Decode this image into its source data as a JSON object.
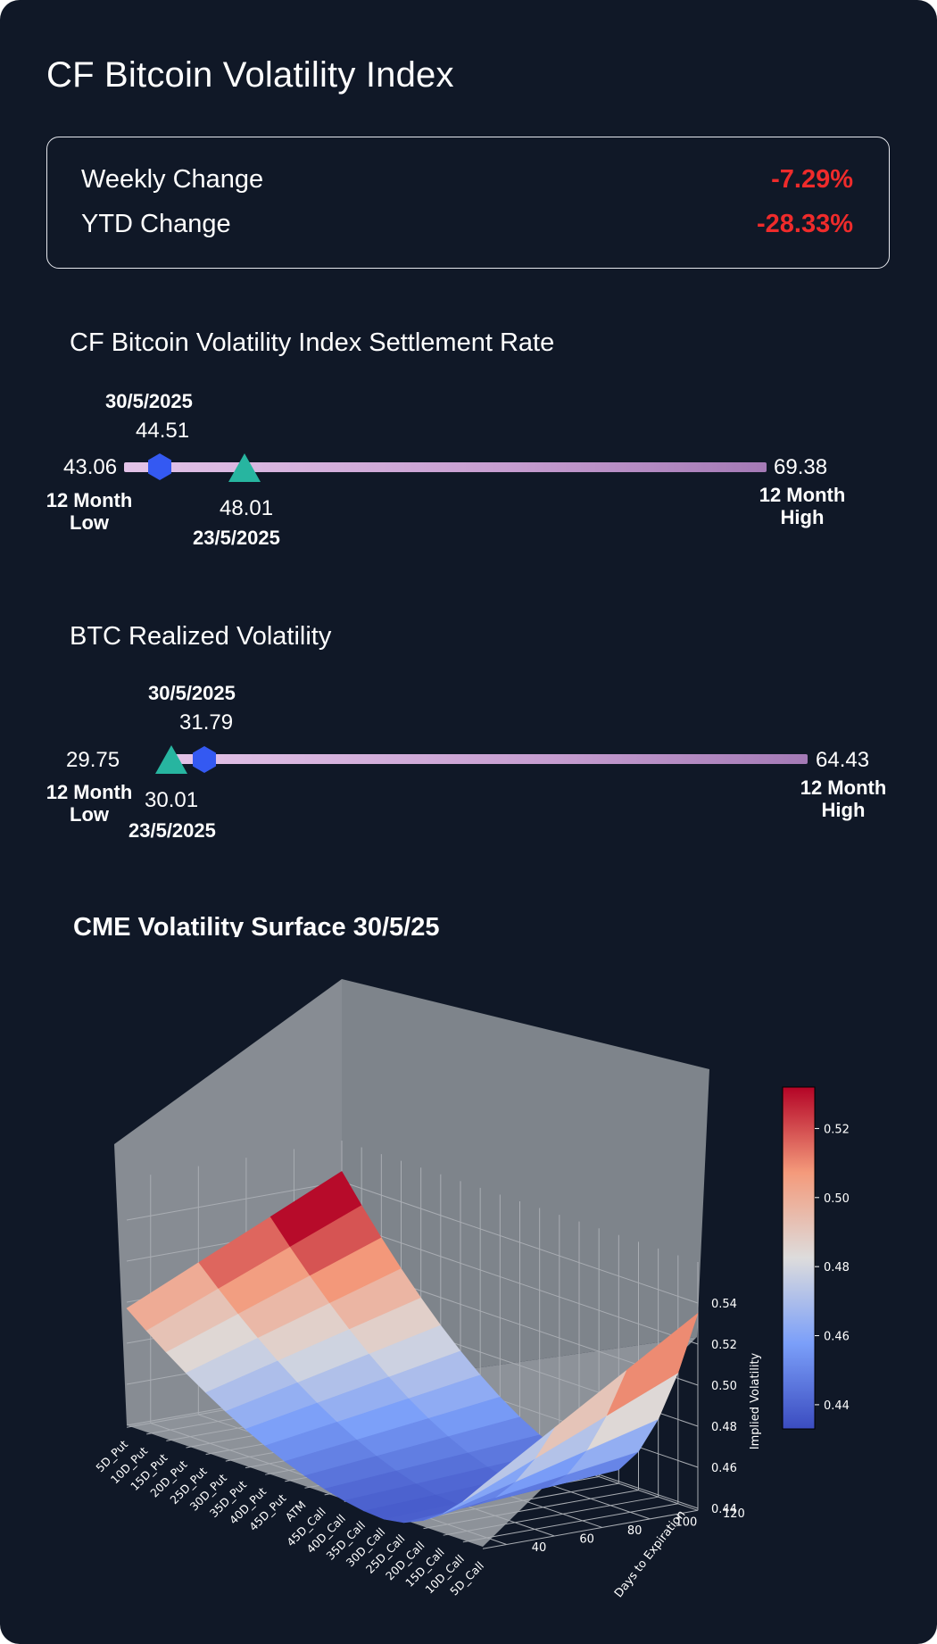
{
  "page": {
    "title": "CF Bitcoin Volatility Index"
  },
  "changes": {
    "weekly_label": "Weekly Change",
    "weekly_value": "-7.29%",
    "ytd_label": "YTD Change",
    "ytd_value": "-28.33%",
    "negative_color": "#ef2b2b"
  },
  "settlement": {
    "title": "CF Bitcoin Volatility Index Settlement Rate",
    "low_value": "43.06",
    "low_label_line1": "12 Month",
    "low_label_line2": "Low",
    "high_value": "69.38",
    "high_label_line1": "12 Month",
    "high_label_line2": "High",
    "current_date": "30/5/2025",
    "current_value": "44.51",
    "previous_date": "23/5/2025",
    "previous_value": "48.01",
    "range_min": 43.06,
    "range_max": 69.38,
    "current_num": 44.51,
    "previous_num": 48.01,
    "current_marker_shape": "hexagon-icon",
    "previous_marker_shape": "triangle-icon"
  },
  "realized": {
    "title": "BTC Realized Volatility",
    "low_value": "29.75",
    "low_label_line1": "12 Month",
    "low_label_line2": "Low",
    "high_value": "64.43",
    "high_label_line1": "12 Month",
    "high_label_line2": "High",
    "current_date": "30/5/2025",
    "current_value": "31.79",
    "previous_date": "23/5/2025",
    "previous_value": "30.01",
    "range_min": 29.75,
    "range_max": 64.43,
    "current_num": 31.79,
    "previous_num": 30.01,
    "current_marker_shape": "hexagon-icon",
    "previous_marker_shape": "triangle-icon"
  },
  "colors": {
    "background": "#101827",
    "current_marker": "#3459f2",
    "previous_marker": "#27b5a0",
    "track": "#c9a3d6"
  },
  "surface": {
    "title": "CME Volatility Surface 30/5/25",
    "chart_data": {
      "type": "surface3d",
      "title": "CME Volatility Surface 30/5/25",
      "xlabel": "",
      "ylabel": "Days to Expiration",
      "zlabel": "Implied Volatility",
      "x_categories": [
        "5D_Put",
        "10D_Put",
        "15D_Put",
        "20D_Put",
        "25D_Put",
        "30D_Put",
        "35D_Put",
        "40D_Put",
        "45D_Put",
        "ATM",
        "45D_Call",
        "40D_Call",
        "35D_Call",
        "30D_Call",
        "25D_Call",
        "20D_Call",
        "15D_Call",
        "10D_Call",
        "5D_Call"
      ],
      "y_ticks": [
        40,
        60,
        80,
        100,
        120
      ],
      "z_ticks": [
        0.44,
        0.46,
        0.48,
        0.5,
        0.52,
        0.54
      ],
      "colorbar_ticks": [
        0.44,
        0.46,
        0.48,
        0.5,
        0.52
      ],
      "colorbar_range": [
        0.433,
        0.532
      ],
      "colormap": "coolwarm",
      "days": [
        30,
        60,
        90,
        120
      ],
      "surface_shape": "smile: high on 5D_Put wing, minimum near 30D_Call, rising at 5D_Call wing; steepest at short expiry",
      "put_wing_iv_short": 0.497,
      "put_wing_iv_long": 0.545,
      "min_iv": 0.437,
      "call_wing_iv_long": 0.535
    }
  }
}
